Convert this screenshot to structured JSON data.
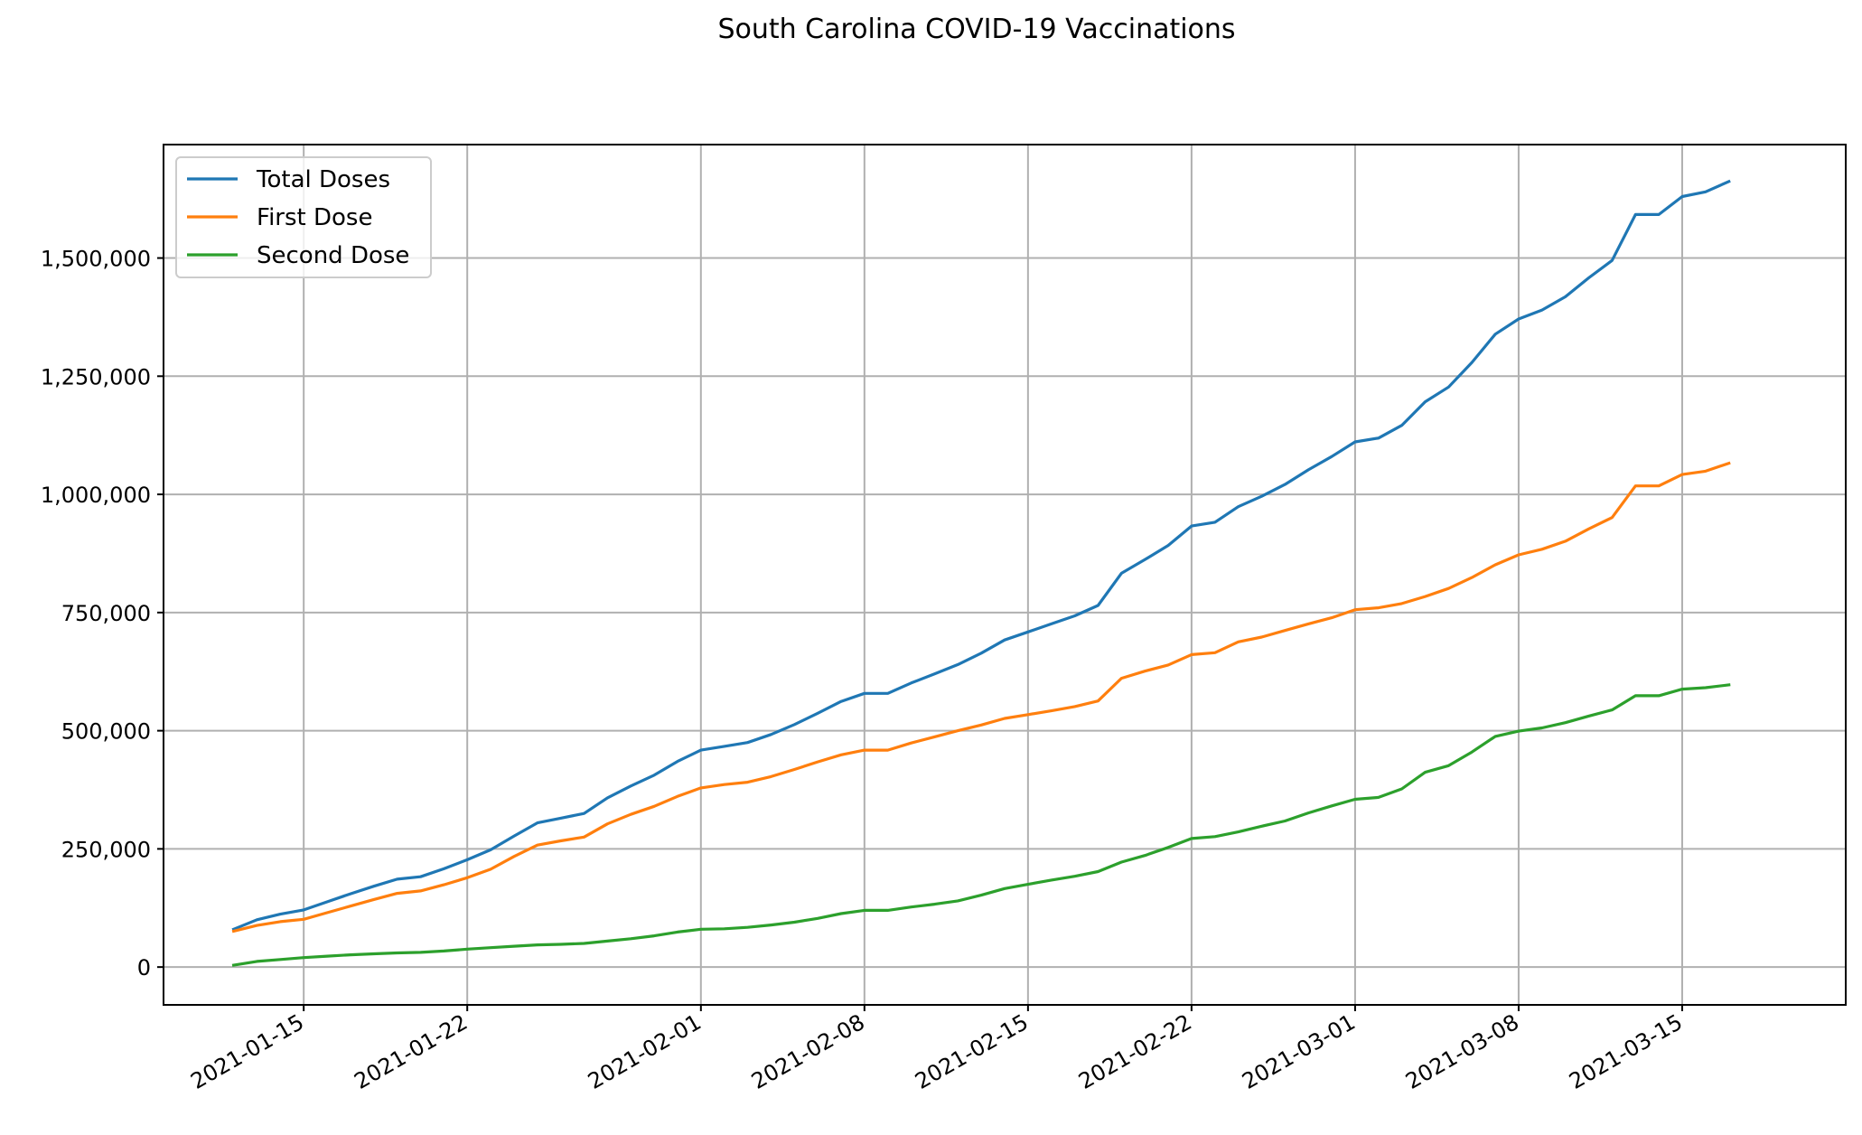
{
  "chart_data": {
    "type": "line",
    "title": "South Carolina COVID-19 Vaccinations",
    "xlabel": "",
    "ylabel": "",
    "x_range": [
      "2021-01-09",
      "2021-03-22"
    ],
    "ylim": [
      -80000,
      1740000
    ],
    "grid": true,
    "legend_position": "top-left",
    "y_ticks": [
      {
        "value": 0,
        "label": "0"
      },
      {
        "value": 250000,
        "label": "250,000"
      },
      {
        "value": 500000,
        "label": "500,000"
      },
      {
        "value": 750000,
        "label": "750,000"
      },
      {
        "value": 1000000,
        "label": "1,000,000"
      },
      {
        "value": 1250000,
        "label": "1,250,000"
      },
      {
        "value": 1500000,
        "label": "1,500,000"
      }
    ],
    "x_ticks": [
      {
        "date": "2021-01-15",
        "label": "2021-01-15"
      },
      {
        "date": "2021-01-22",
        "label": "2021-01-22"
      },
      {
        "date": "2021-02-01",
        "label": "2021-02-01"
      },
      {
        "date": "2021-02-08",
        "label": "2021-02-08"
      },
      {
        "date": "2021-02-15",
        "label": "2021-02-15"
      },
      {
        "date": "2021-02-22",
        "label": "2021-02-22"
      },
      {
        "date": "2021-03-01",
        "label": "2021-03-01"
      },
      {
        "date": "2021-03-08",
        "label": "2021-03-08"
      },
      {
        "date": "2021-03-15",
        "label": "2021-03-15"
      }
    ],
    "dates": [
      "2021-01-12",
      "2021-01-13",
      "2021-01-14",
      "2021-01-15",
      "2021-01-16",
      "2021-01-17",
      "2021-01-18",
      "2021-01-19",
      "2021-01-20",
      "2021-01-21",
      "2021-01-22",
      "2021-01-23",
      "2021-01-24",
      "2021-01-25",
      "2021-01-26",
      "2021-01-27",
      "2021-01-28",
      "2021-01-29",
      "2021-01-30",
      "2021-01-31",
      "2021-02-01",
      "2021-02-02",
      "2021-02-03",
      "2021-02-04",
      "2021-02-05",
      "2021-02-06",
      "2021-02-07",
      "2021-02-08",
      "2021-02-09",
      "2021-02-10",
      "2021-02-11",
      "2021-02-12",
      "2021-02-13",
      "2021-02-14",
      "2021-02-15",
      "2021-02-16",
      "2021-02-17",
      "2021-02-18",
      "2021-02-19",
      "2021-02-20",
      "2021-02-21",
      "2021-02-22",
      "2021-02-23",
      "2021-02-24",
      "2021-02-25",
      "2021-02-26",
      "2021-02-27",
      "2021-02-28",
      "2021-03-01",
      "2021-03-02",
      "2021-03-03",
      "2021-03-04",
      "2021-03-05",
      "2021-03-06",
      "2021-03-07",
      "2021-03-08",
      "2021-03-09",
      "2021-03-10",
      "2021-03-11",
      "2021-03-12",
      "2021-03-13",
      "2021-03-14",
      "2021-03-15",
      "2021-03-16",
      "2021-03-17"
    ],
    "series": [
      {
        "name": "Total Doses",
        "color": "#1f77b4",
        "values": [
          80000,
          100000,
          112000,
          121000,
          138000,
          155000,
          171000,
          186000,
          191000,
          208000,
          227000,
          248000,
          277000,
          305000,
          315000,
          325000,
          358000,
          383000,
          406000,
          435000,
          459000,
          467000,
          475000,
          492000,
          513000,
          537000,
          562000,
          579000,
          579000,
          601000,
          620000,
          640000,
          664000,
          692000,
          709000,
          726000,
          743000,
          765000,
          833000,
          862000,
          892000,
          933000,
          941000,
          974000,
          996000,
          1021000,
          1052000,
          1080000,
          1111000,
          1119000,
          1146000,
          1196000,
          1227000,
          1279000,
          1339000,
          1371000,
          1390000,
          1418000,
          1458000,
          1495000,
          1592000,
          1592000,
          1630000,
          1640000,
          1662000
        ]
      },
      {
        "name": "First Dose",
        "color": "#ff7f0e",
        "values": [
          76000,
          88000,
          96000,
          101000,
          115000,
          129000,
          143000,
          156000,
          161000,
          174000,
          189000,
          207000,
          234000,
          258000,
          267000,
          275000,
          303000,
          323000,
          340000,
          361000,
          379000,
          386000,
          391000,
          403000,
          418000,
          434000,
          449000,
          459000,
          459000,
          474000,
          487000,
          500000,
          512000,
          526000,
          534000,
          542000,
          551000,
          563000,
          611000,
          626000,
          639000,
          661000,
          665000,
          688000,
          698000,
          712000,
          726000,
          739000,
          756000,
          760000,
          769000,
          784000,
          801000,
          824000,
          851000,
          872000,
          884000,
          901000,
          927000,
          951000,
          1018000,
          1018000,
          1042000,
          1049000,
          1066000
        ]
      },
      {
        "name": "Second Dose",
        "color": "#2ca02c",
        "values": [
          4000,
          12000,
          16000,
          20000,
          23000,
          26000,
          28000,
          30000,
          31000,
          34000,
          38000,
          41000,
          44000,
          47000,
          48000,
          50000,
          55000,
          60000,
          66000,
          74000,
          80000,
          81000,
          84000,
          89000,
          95000,
          103000,
          113000,
          120000,
          120000,
          127000,
          133000,
          140000,
          152000,
          166000,
          175000,
          184000,
          192000,
          202000,
          222000,
          236000,
          253000,
          272000,
          276000,
          286000,
          298000,
          309000,
          326000,
          341000,
          355000,
          359000,
          377000,
          412000,
          426000,
          455000,
          488000,
          499000,
          506000,
          517000,
          531000,
          544000,
          574000,
          574000,
          588000,
          591000,
          597000
        ]
      }
    ]
  }
}
